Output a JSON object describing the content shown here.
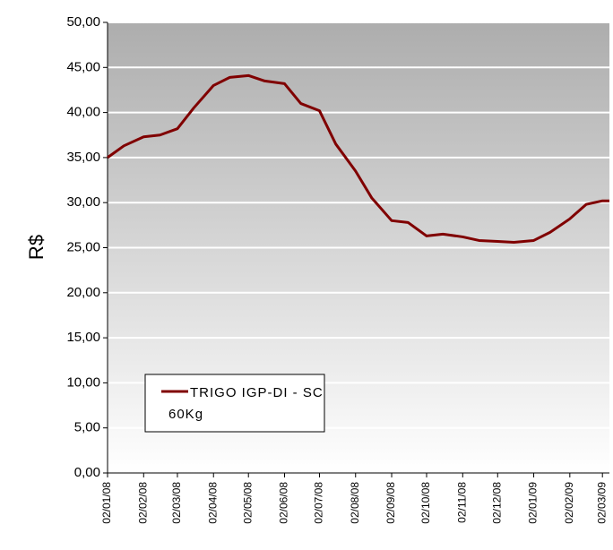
{
  "chart_data": {
    "type": "line",
    "ylabel": "R$",
    "x": [
      "02/01/08",
      "16/01/08",
      "02/02/08",
      "16/02/08",
      "02/03/08",
      "16/03/08",
      "02/04/08",
      "16/04/08",
      "02/05/08",
      "16/05/08",
      "02/06/08",
      "16/06/08",
      "02/07/08",
      "16/07/08",
      "02/08/08",
      "16/08/08",
      "02/09/08",
      "16/09/08",
      "02/10/08",
      "16/10/08",
      "02/11/08",
      "16/11/08",
      "02/12/08",
      "16/12/08",
      "02/01/09",
      "16/01/09",
      "02/02/09",
      "16/02/09",
      "02/03/09",
      "08/03/09"
    ],
    "series": [
      {
        "name": "TRIGO IGP-DI - SC 60Kg",
        "color": "#800000",
        "values": [
          35.0,
          36.3,
          37.3,
          37.5,
          38.2,
          40.5,
          43.0,
          43.9,
          44.1,
          43.5,
          43.2,
          41.0,
          40.2,
          36.5,
          33.5,
          30.5,
          28.0,
          27.8,
          26.3,
          26.5,
          26.2,
          25.8,
          25.7,
          25.6,
          25.8,
          26.7,
          28.2,
          29.8,
          30.2,
          30.2
        ]
      }
    ],
    "xlim": [
      "02/01/08",
      "08/03/09"
    ],
    "xticks": [
      "02/01/08",
      "02/02/08",
      "02/03/08",
      "02/04/08",
      "02/05/08",
      "02/06/08",
      "02/07/08",
      "02/08/08",
      "02/09/08",
      "02/10/08",
      "02/11/08",
      "02/12/08",
      "02/01/09",
      "02/02/09",
      "02/03/09"
    ],
    "ylim": [
      0,
      50
    ],
    "yticks": [
      {
        "value": 0,
        "label": "0,00"
      },
      {
        "value": 5,
        "label": "5,00"
      },
      {
        "value": 10,
        "label": "10,00"
      },
      {
        "value": 15,
        "label": "15,00"
      },
      {
        "value": 20,
        "label": "20,00"
      },
      {
        "value": 25,
        "label": "25,00"
      },
      {
        "value": 30,
        "label": "30,00"
      },
      {
        "value": 35,
        "label": "35,00"
      },
      {
        "value": 40,
        "label": "40,00"
      },
      {
        "value": 45,
        "label": "45,00"
      },
      {
        "value": 50,
        "label": "50,00"
      }
    ],
    "grid": true,
    "legend": "lower left"
  }
}
